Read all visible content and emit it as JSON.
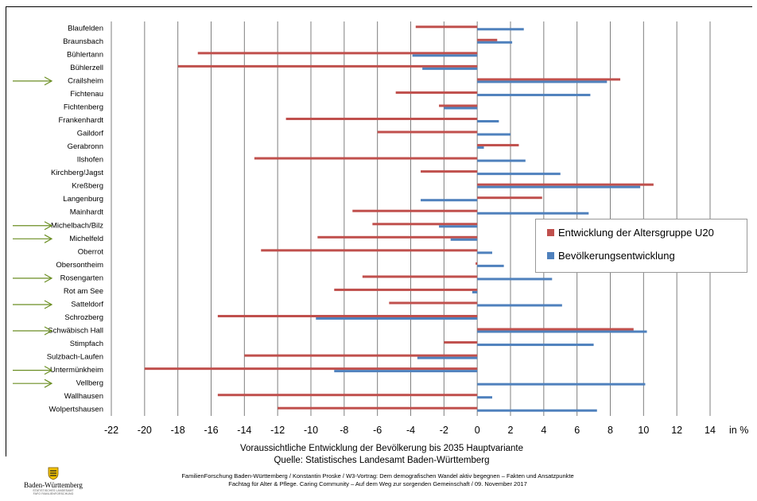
{
  "chart_data": {
    "type": "bar",
    "orientation": "horizontal",
    "categories": [
      "Blaufelden",
      "Braunsbach",
      "Bühlertann",
      "Bühlerzell",
      "Crailsheim",
      "Fichtenau",
      "Fichtenberg",
      "Frankenhardt",
      "Gaildorf",
      "Gerabronn",
      "Ilshofen",
      "Kirchberg/Jagst",
      "Kreßberg",
      "Langenburg",
      "Mainhardt",
      "Michelbach/Bilz",
      "Michelfeld",
      "Oberrot",
      "Obersontheim",
      "Rosengarten",
      "Rot am See",
      "Satteldorf",
      "Schrozberg",
      "Schwäbisch Hall",
      "Stimpfach",
      "Sulzbach-Laufen",
      "Untermünkheim",
      "Vellberg",
      "Wallhausen",
      "Wolpertshausen"
    ],
    "series": [
      {
        "name": "Entwicklung der Altersgruppe U20",
        "color": "#c0504d",
        "values": [
          -3.7,
          1.2,
          -16.8,
          -18.0,
          8.6,
          -4.9,
          -2.3,
          -11.5,
          -6.0,
          2.5,
          -13.4,
          -3.4,
          10.6,
          3.9,
          -7.5,
          -6.3,
          -9.6,
          -13.0,
          -0.1,
          -6.9,
          -8.6,
          -5.3,
          -15.6,
          9.4,
          -2.0,
          -14.0,
          -20.0,
          0.0,
          -15.6,
          -12.0
        ]
      },
      {
        "name": "Bevölkerungsentwicklung",
        "color": "#4f81bd",
        "values": [
          2.8,
          2.1,
          -3.9,
          -3.3,
          7.8,
          6.8,
          -2.0,
          1.3,
          2.0,
          0.4,
          2.9,
          5.0,
          9.8,
          -3.4,
          6.7,
          -2.3,
          -1.6,
          0.9,
          1.6,
          4.5,
          -0.3,
          5.1,
          -9.7,
          10.2,
          7.0,
          -3.6,
          -8.6,
          10.1,
          0.9,
          7.2
        ]
      }
    ],
    "xlim": [
      -22,
      14
    ],
    "xticks": [
      "-22",
      "-20",
      "-18",
      "-16",
      "-14",
      "-12",
      "-10",
      "-8",
      "-6",
      "-4",
      "-2",
      "0",
      "2",
      "4",
      "6",
      "8",
      "10",
      "12",
      "14"
    ],
    "xunit": "in %",
    "grid": true,
    "legend_position": "right",
    "highlighted_categories": [
      "Crailsheim",
      "Michelbach/Bilz",
      "Michelfeld",
      "Rosengarten",
      "Satteldorf",
      "Schwäbisch Hall",
      "Untermünkheim",
      "Vellberg"
    ],
    "arrow_color": "#6b8e23"
  },
  "caption": {
    "line1": "Voraussichtliche Entwicklung der Bevölkerung bis 2035 Hauptvariante",
    "line2": "Quelle: Statistisches Landesamt Baden-Württemberg"
  },
  "footer": {
    "line1": "FamilienForschung Baden-Württemberg / Konstantin Proske / W3-Vortrag: Dem demografischen Wandel aktiv begegnen – Fakten und Ansatzpunkte",
    "line2": "Fachtag für Alter & Pflege. Caring Community – Auf dem Weg zur sorgenden Gemeinschaft / 09. November 2017"
  },
  "logo": {
    "name": "Baden-Württemberg",
    "sub1": "STATISTISCHES LANDESAMT",
    "sub2": "FAFO FAMILIENFORSCHUNG"
  }
}
